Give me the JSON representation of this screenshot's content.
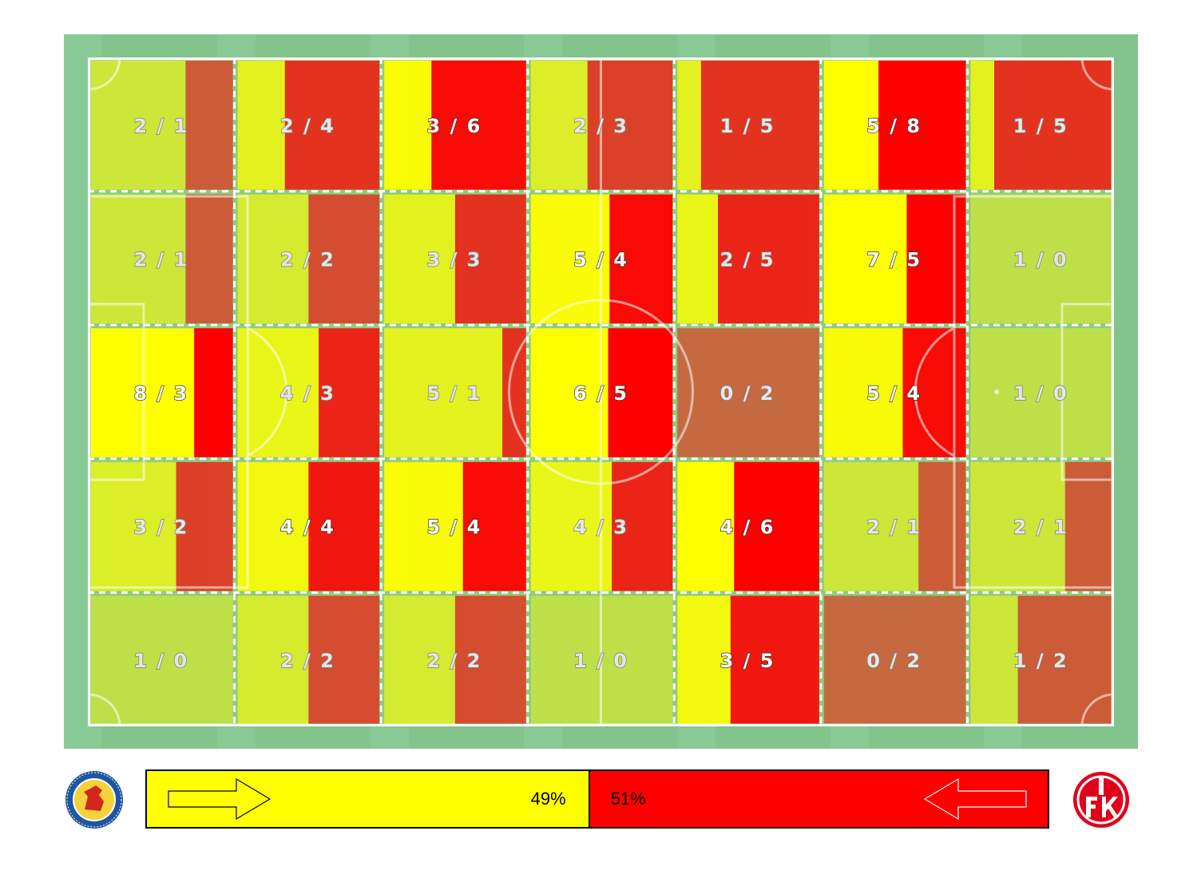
{
  "chart_data": {
    "type": "heatmap",
    "title": "",
    "rows": 5,
    "cols": 7,
    "cells": [
      [
        "2 / 1",
        "2 / 4",
        "3 / 6",
        "2 / 3",
        "1 / 5",
        "5 / 8",
        "1 / 5"
      ],
      [
        "2 / 1",
        "2 / 2",
        "3 / 3",
        "5 / 4",
        "2 / 5",
        "7 / 5",
        "1 / 0"
      ],
      [
        "8 / 3",
        "4 / 3",
        "5 / 1",
        "6 / 5",
        "0 / 2",
        "5 / 4",
        "1 / 0"
      ],
      [
        "3 / 2",
        "4 / 4",
        "5 / 4",
        "4 / 3",
        "4 / 6",
        "2 / 1",
        "2 / 1"
      ],
      [
        "1 / 0",
        "2 / 2",
        "2 / 2",
        "1 / 0",
        "3 / 5",
        "0 / 2",
        "1 / 2"
      ]
    ],
    "home_values": [
      [
        2,
        2,
        3,
        2,
        1,
        5,
        1
      ],
      [
        2,
        2,
        3,
        5,
        2,
        7,
        1
      ],
      [
        8,
        4,
        5,
        6,
        0,
        5,
        1
      ],
      [
        3,
        4,
        5,
        4,
        4,
        2,
        2
      ],
      [
        1,
        2,
        2,
        1,
        3,
        0,
        1
      ]
    ],
    "away_values": [
      [
        1,
        4,
        6,
        3,
        5,
        8,
        5
      ],
      [
        1,
        2,
        3,
        4,
        5,
        5,
        0
      ],
      [
        3,
        3,
        1,
        5,
        2,
        4,
        0
      ],
      [
        2,
        4,
        4,
        3,
        6,
        1,
        1
      ],
      [
        0,
        2,
        2,
        0,
        5,
        2,
        2
      ]
    ],
    "colors": {
      "home": "#ffff00",
      "away": "#ff0000",
      "pitch": "#82c48c",
      "lines": "#ffffff"
    }
  },
  "legend": {
    "home_pct_value": 49,
    "away_pct_value": 51,
    "home_pct": "49%",
    "away_pct": "51%",
    "home_direction": "right",
    "away_direction": "left",
    "home_logo_icon": "braunschweig-crest-icon",
    "away_logo_icon": "fck-crest-icon"
  }
}
